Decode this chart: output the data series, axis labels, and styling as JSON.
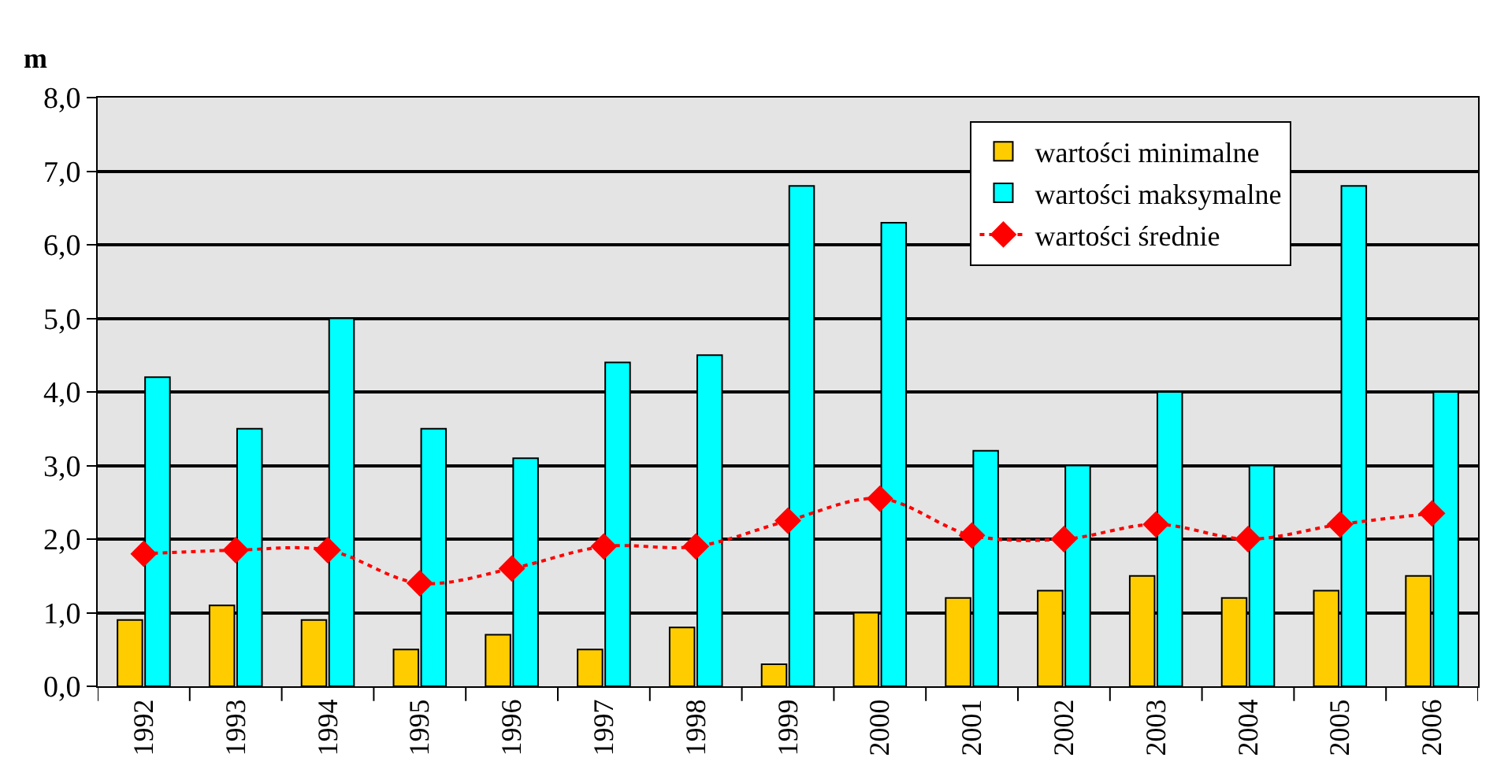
{
  "chart_data": {
    "type": "bar",
    "ylabel": "m",
    "categories": [
      "1992",
      "1993",
      "1994",
      "1995",
      "1996",
      "1997",
      "1998",
      "1999",
      "2000",
      "2001",
      "2002",
      "2003",
      "2004",
      "2005",
      "2006"
    ],
    "series": [
      {
        "name": "wartości minimalne",
        "color": "#ffcc00",
        "values": [
          0.9,
          1.1,
          0.9,
          0.5,
          0.7,
          0.5,
          0.8,
          0.3,
          1.0,
          1.2,
          1.3,
          1.5,
          1.2,
          1.3,
          1.5
        ]
      },
      {
        "name": "wartości maksymalne",
        "color": "#00ffff",
        "values": [
          4.2,
          3.5,
          5.0,
          3.5,
          3.1,
          4.4,
          4.5,
          6.8,
          6.3,
          3.2,
          3.0,
          4.0,
          3.0,
          6.8,
          4.0
        ]
      },
      {
        "name": "wartości średnie",
        "type": "line",
        "color": "#ff0000",
        "marker": "diamond",
        "line_style": "dotted",
        "values": [
          1.8,
          1.85,
          1.85,
          1.4,
          1.6,
          1.9,
          1.9,
          2.25,
          2.55,
          2.05,
          2.0,
          2.2,
          2.0,
          2.2,
          2.35
        ]
      }
    ],
    "ylim": [
      0,
      8
    ],
    "yticks": [
      {
        "value": 0,
        "label": "0,0"
      },
      {
        "value": 1,
        "label": "1,0"
      },
      {
        "value": 2,
        "label": "2,0"
      },
      {
        "value": 3,
        "label": "3,0"
      },
      {
        "value": 4,
        "label": "4,0"
      },
      {
        "value": 5,
        "label": "5,0"
      },
      {
        "value": 6,
        "label": "6,0"
      },
      {
        "value": 7,
        "label": "7,0"
      },
      {
        "value": 8,
        "label": "8,0"
      }
    ],
    "grid": "y",
    "legend": "top right"
  }
}
